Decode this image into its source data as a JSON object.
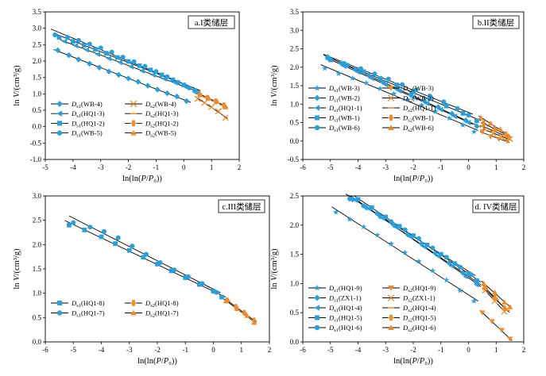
{
  "colors": {
    "blue": "#2B9FDA",
    "orange": "#EE8A2A",
    "line": "#000000"
  },
  "chart_data": [
    {
      "type": "scatter",
      "panel_title": "a.I类储层",
      "xlabel": "ln(ln(P/P₀))",
      "ylabel": "ln V/(cm³/g)",
      "xlim": [
        -5,
        2
      ],
      "ylim": [
        -1.0,
        3.5
      ],
      "xticks": [
        -5,
        -4,
        -3,
        -2,
        -1,
        0,
        1,
        2
      ],
      "yticks": [
        -1.0,
        -0.5,
        0,
        0.5,
        1.0,
        1.5,
        2.0,
        2.5,
        3.0,
        3.5
      ],
      "legend": {
        "placement": "bottom-left",
        "columns": 2
      },
      "series": [
        {
          "name": "D_s1(WB-4)",
          "region": "s1",
          "marker": "diamond",
          "color": "#2B9FDA",
          "x": [
            -4.55,
            -4.15,
            -3.8,
            -3.4,
            -3.05,
            -2.7,
            -2.35,
            -2.0,
            -1.65,
            -1.3,
            -0.95,
            -0.6,
            -0.25,
            0.1
          ],
          "y": [
            2.33,
            2.18,
            2.05,
            1.92,
            1.8,
            1.68,
            1.58,
            1.47,
            1.37,
            1.25,
            1.13,
            1.02,
            0.92,
            0.78
          ]
        },
        {
          "name": "D_s2(WB-4)",
          "region": "s2",
          "marker": "x",
          "color": "#EE8A2A",
          "x": [
            0.5,
            0.75,
            1.0,
            1.25,
            1.5
          ],
          "y": [
            0.85,
            0.73,
            0.6,
            0.47,
            0.27
          ]
        },
        {
          "name": "D_s1(HQ1-3)",
          "region": "s1",
          "marker": "triangle-left",
          "color": "#2B9FDA",
          "x": [
            -4.3,
            -3.9,
            -3.5,
            -3.1,
            -2.7,
            -2.3,
            -1.9,
            -1.5,
            -1.1,
            -0.7,
            -0.3,
            0.1,
            0.4
          ],
          "y": [
            2.6,
            2.47,
            2.34,
            2.21,
            2.08,
            1.96,
            1.83,
            1.7,
            1.58,
            1.46,
            1.34,
            1.2,
            1.08
          ]
        },
        {
          "name": "D_s2(HQ1-3)",
          "region": "s2",
          "marker": "dash",
          "color": "#EE8A2A",
          "x": [
            0.5,
            0.8,
            1.1,
            1.4
          ],
          "y": [
            1.02,
            0.9,
            0.78,
            0.66
          ]
        },
        {
          "name": "D_s1(HQ1-2)",
          "region": "s1",
          "marker": "square",
          "color": "#2B9FDA",
          "x": [
            -4.5,
            -4.0,
            -3.6,
            -3.2,
            -2.8,
            -2.4,
            -2.0,
            -1.6,
            -1.2,
            -0.8,
            -0.4,
            0.0,
            0.4
          ],
          "y": [
            2.72,
            2.6,
            2.48,
            2.36,
            2.24,
            2.11,
            1.99,
            1.86,
            1.73,
            1.58,
            1.43,
            1.27,
            1.1
          ]
        },
        {
          "name": "D_s2(HQ1-2)",
          "region": "s2",
          "marker": "barred",
          "color": "#EE8A2A",
          "x": [
            0.55,
            0.85,
            1.15,
            1.45
          ],
          "y": [
            1.0,
            0.88,
            0.77,
            0.65
          ]
        },
        {
          "name": "D_s1(WB-5)",
          "region": "s1",
          "marker": "circle",
          "color": "#2B9FDA",
          "x": [
            -4.65,
            -4.2,
            -3.8,
            -3.4,
            -3.0,
            -2.6,
            -2.2,
            -1.8,
            -1.4,
            -1.0,
            -0.6,
            -0.2,
            0.2,
            0.45
          ],
          "y": [
            2.8,
            2.72,
            2.63,
            2.52,
            2.4,
            2.27,
            2.12,
            1.98,
            1.84,
            1.68,
            1.52,
            1.35,
            1.18,
            1.06
          ]
        },
        {
          "name": "D_s2(WB-5)",
          "region": "s2",
          "marker": "triangle-up",
          "color": "#EE8A2A",
          "x": [
            0.6,
            0.9,
            1.2,
            1.5
          ],
          "y": [
            0.97,
            0.87,
            0.77,
            0.6
          ]
        }
      ]
    },
    {
      "type": "scatter",
      "panel_title": "b.II类储层",
      "xlabel": "ln(ln(P/P₀))",
      "ylabel": "ln V/(cm³/g)",
      "xlim": [
        -6,
        2
      ],
      "ylim": [
        -0.5,
        3.5
      ],
      "xticks": [
        -6,
        -5,
        -4,
        -3,
        -2,
        -1,
        0,
        1,
        2
      ],
      "yticks": [
        -0.5,
        0,
        0.5,
        1.0,
        1.5,
        2.0,
        2.5,
        3.0,
        3.5
      ],
      "legend": {
        "placement": "bottom-left",
        "columns": 2
      },
      "series": [
        {
          "name": "D_s1(WB-3)",
          "region": "s1",
          "marker": "star",
          "color": "#2B9FDA",
          "x": [
            -5.2,
            -4.7,
            -4.2,
            -3.7,
            -3.2,
            -2.7,
            -2.2,
            -1.7,
            -1.2,
            -0.7,
            -0.2,
            0.2
          ],
          "y": [
            1.97,
            1.83,
            1.7,
            1.57,
            1.42,
            1.28,
            1.12,
            0.97,
            0.8,
            0.62,
            0.43,
            0.25
          ]
        },
        {
          "name": "D_s2(WB-3)",
          "region": "s2",
          "marker": "triangle-down",
          "color": "#EE8A2A",
          "x": [
            0.5,
            0.8,
            1.1,
            1.4
          ],
          "y": [
            0.25,
            0.12,
            0.05,
            0.0
          ]
        },
        {
          "name": "D_s1(WB-2)",
          "region": "s1",
          "marker": "diamond",
          "color": "#2B9FDA",
          "x": [
            -5.1,
            -4.6,
            -4.1,
            -3.6,
            -3.1,
            -2.6,
            -2.1,
            -1.6,
            -1.1,
            -0.6,
            -0.1,
            0.3
          ],
          "y": [
            2.28,
            2.1,
            1.94,
            1.77,
            1.6,
            1.43,
            1.26,
            1.09,
            0.92,
            0.74,
            0.56,
            0.4
          ]
        },
        {
          "name": "D_s2(WB-2)",
          "region": "s2",
          "marker": "x",
          "color": "#EE8A2A",
          "x": [
            0.6,
            0.9,
            1.2,
            1.5
          ],
          "y": [
            0.32,
            0.2,
            0.11,
            0.05
          ]
        },
        {
          "name": "D_s1(HQ1-1)",
          "region": "s1",
          "marker": "triangle-left",
          "color": "#2B9FDA",
          "x": [
            -5.0,
            -4.5,
            -4.0,
            -3.5,
            -3.0,
            -2.5,
            -2.0,
            -1.5,
            -1.0,
            -0.5,
            0.0
          ],
          "y": [
            2.2,
            2.03,
            1.87,
            1.7,
            1.53,
            1.36,
            1.19,
            1.02,
            0.85,
            0.67,
            0.5
          ]
        },
        {
          "name": "D_s2(HQ1-1)",
          "region": "s2",
          "marker": "dash",
          "color": "#EE8A2A",
          "x": [
            0.5,
            0.9,
            1.3
          ],
          "y": [
            0.4,
            0.27,
            0.15
          ]
        },
        {
          "name": "D_s1(WB-1)",
          "region": "s1",
          "marker": "square",
          "color": "#2B9FDA",
          "x": [
            -5.0,
            -4.4,
            -3.8,
            -3.2,
            -2.6,
            -2.0,
            -1.4,
            -0.8,
            -0.2,
            0.3
          ],
          "y": [
            2.2,
            2.05,
            1.88,
            1.7,
            1.52,
            1.33,
            1.15,
            0.95,
            0.75,
            0.55
          ]
        },
        {
          "name": "D_s2(WB-1)",
          "region": "s2",
          "marker": "barred",
          "color": "#EE8A2A",
          "x": [
            0.55,
            0.95,
            1.35
          ],
          "y": [
            0.48,
            0.32,
            0.18
          ]
        },
        {
          "name": "D_s1(WB-6)",
          "region": "s1",
          "marker": "circle",
          "color": "#2B9FDA",
          "x": [
            -5.1,
            -4.5,
            -3.9,
            -3.4,
            -2.9,
            -2.4,
            -1.9,
            -1.4,
            -0.9,
            -0.4,
            0.0
          ],
          "y": [
            2.25,
            2.1,
            1.96,
            1.82,
            1.68,
            1.53,
            1.38,
            1.22,
            1.06,
            0.88,
            0.7
          ]
        },
        {
          "name": "D_s2(WB-6)",
          "region": "s2",
          "marker": "triangle-up",
          "color": "#EE8A2A",
          "x": [
            0.45,
            0.8,
            1.15,
            1.45
          ],
          "y": [
            0.63,
            0.48,
            0.32,
            0.14
          ]
        }
      ]
    },
    {
      "type": "scatter",
      "panel_title": "c.III类储层",
      "xlabel": "ln(ln(P/P₀))",
      "ylabel": "ln V/(cm³/g)",
      "xlim": [
        -6,
        2
      ],
      "ylim": [
        0,
        3.0
      ],
      "xticks": [
        -6,
        -5,
        -4,
        -3,
        -2,
        -1,
        0,
        1,
        2
      ],
      "yticks": [
        0,
        0.5,
        1.0,
        1.5,
        2.0,
        2.5,
        3.0
      ],
      "legend": {
        "placement": "bottom-left",
        "columns": 2
      },
      "series": [
        {
          "name": "D_s1(HQ1-8)",
          "region": "s1",
          "marker": "square",
          "color": "#2B9FDA",
          "x": [
            -5.15,
            -4.6,
            -4.0,
            -3.5,
            -3.0,
            -2.5,
            -2.0,
            -1.5,
            -1.0,
            -0.5,
            0.0,
            0.3
          ],
          "y": [
            2.4,
            2.3,
            2.16,
            2.02,
            1.88,
            1.74,
            1.6,
            1.46,
            1.32,
            1.18,
            1.04,
            0.92
          ]
        },
        {
          "name": "D_s2(HQ1-8)",
          "region": "s2",
          "marker": "barred",
          "color": "#EE8A2A",
          "x": [
            0.5,
            0.8,
            1.1,
            1.45
          ],
          "y": [
            0.85,
            0.72,
            0.6,
            0.44
          ]
        },
        {
          "name": "D_s1(HQ1-7)",
          "region": "s1",
          "marker": "circle",
          "color": "#2B9FDA",
          "x": [
            -5.0,
            -4.4,
            -3.9,
            -3.4,
            -2.9,
            -2.4,
            -1.9,
            -1.4,
            -0.9,
            -0.4,
            0.1
          ],
          "y": [
            2.45,
            2.36,
            2.27,
            2.14,
            1.97,
            1.8,
            1.63,
            1.48,
            1.34,
            1.2,
            1.02
          ]
        },
        {
          "name": "D_s2(HQ1-7)",
          "region": "s2",
          "marker": "triangle-up",
          "color": "#EE8A2A",
          "x": [
            0.45,
            0.85,
            1.2,
            1.45
          ],
          "y": [
            0.84,
            0.68,
            0.54,
            0.4
          ]
        }
      ]
    },
    {
      "type": "scatter",
      "panel_title": "d. IV类储层",
      "xlabel": "ln(ln(P/P₀))",
      "ylabel": "ln V/(cm³/g)",
      "xlim": [
        -6,
        2
      ],
      "ylim": [
        0,
        2.5
      ],
      "xticks": [
        -6,
        -5,
        -4,
        -3,
        -2,
        -1,
        0,
        1,
        2
      ],
      "yticks": [
        0,
        0.5,
        1.0,
        1.5,
        2.0,
        2.5
      ],
      "legend": {
        "placement": "bottom-left",
        "columns": 2
      },
      "series": [
        {
          "name": "D_s1(HQ1-9)",
          "region": "s1",
          "marker": "star",
          "color": "#2B9FDA",
          "x": [
            -4.8,
            -4.3,
            -3.8,
            -3.3,
            -2.8,
            -2.3,
            -1.8,
            -1.3,
            -0.8,
            -0.3,
            0.2
          ],
          "y": [
            2.22,
            2.1,
            1.97,
            1.83,
            1.68,
            1.53,
            1.38,
            1.22,
            1.06,
            0.88,
            0.7
          ]
        },
        {
          "name": "D_s2(HQ1-9)",
          "region": "s2",
          "marker": "triangle-down",
          "color": "#EE8A2A",
          "x": [
            0.5,
            0.85,
            1.2,
            1.5
          ],
          "y": [
            0.5,
            0.35,
            0.2,
            0.05
          ]
        },
        {
          "name": "D_s1(ZX1-1)",
          "region": "s1",
          "marker": "diamond",
          "color": "#2B9FDA",
          "x": [
            -4.2,
            -3.7,
            -3.2,
            -2.7,
            -2.2,
            -1.7,
            -1.2,
            -0.7,
            -0.2,
            0.3
          ],
          "y": [
            2.44,
            2.3,
            2.15,
            2.0,
            1.84,
            1.68,
            1.52,
            1.35,
            1.18,
            1.0
          ]
        },
        {
          "name": "D_s2(ZX1-1)",
          "region": "s2",
          "marker": "x",
          "color": "#EE8A2A",
          "x": [
            0.6,
            0.95,
            1.3
          ],
          "y": [
            0.88,
            0.7,
            0.52
          ]
        },
        {
          "name": "D_s1(HQ1-4)",
          "region": "s1",
          "marker": "triangle-left",
          "color": "#2B9FDA",
          "x": [
            -4.1,
            -3.6,
            -3.1,
            -2.6,
            -2.1,
            -1.6,
            -1.1,
            -0.6,
            -0.1,
            0.3
          ],
          "y": [
            2.43,
            2.28,
            2.12,
            1.96,
            1.8,
            1.63,
            1.47,
            1.3,
            1.12,
            0.98
          ]
        },
        {
          "name": "D_s2(HQ1-4)",
          "region": "s2",
          "marker": "dash",
          "color": "#EE8A2A",
          "x": [
            0.6,
            1.0,
            1.4
          ],
          "y": [
            0.9,
            0.72,
            0.54
          ]
        },
        {
          "name": "D_s1(HQ1-5)",
          "region": "s1",
          "marker": "square",
          "color": "#2B9FDA",
          "x": [
            -4.0,
            -3.5,
            -3.0,
            -2.5,
            -2.0,
            -1.5,
            -1.0,
            -0.5,
            0.0,
            0.3
          ],
          "y": [
            2.44,
            2.3,
            2.14,
            1.98,
            1.82,
            1.66,
            1.5,
            1.34,
            1.17,
            1.05
          ]
        },
        {
          "name": "D_s2(HQ1-5)",
          "region": "s2",
          "marker": "barred",
          "color": "#EE8A2A",
          "x": [
            0.6,
            0.95,
            1.3
          ],
          "y": [
            0.93,
            0.76,
            0.58
          ]
        },
        {
          "name": "D_s1(HQ1-6)",
          "region": "s1",
          "marker": "circle",
          "color": "#2B9FDA",
          "x": [
            -4.3,
            -3.8,
            -3.3,
            -2.8,
            -2.3,
            -1.8,
            -1.3,
            -0.8,
            -0.3,
            0.1
          ],
          "y": [
            2.45,
            2.33,
            2.2,
            2.06,
            1.92,
            1.77,
            1.61,
            1.45,
            1.28,
            1.15
          ]
        },
        {
          "name": "D_s2(HQ1-6)",
          "region": "s2",
          "marker": "triangle-up",
          "color": "#EE8A2A",
          "x": [
            0.55,
            0.95,
            1.3,
            1.5
          ],
          "y": [
            1.0,
            0.85,
            0.68,
            0.6
          ]
        }
      ]
    }
  ]
}
